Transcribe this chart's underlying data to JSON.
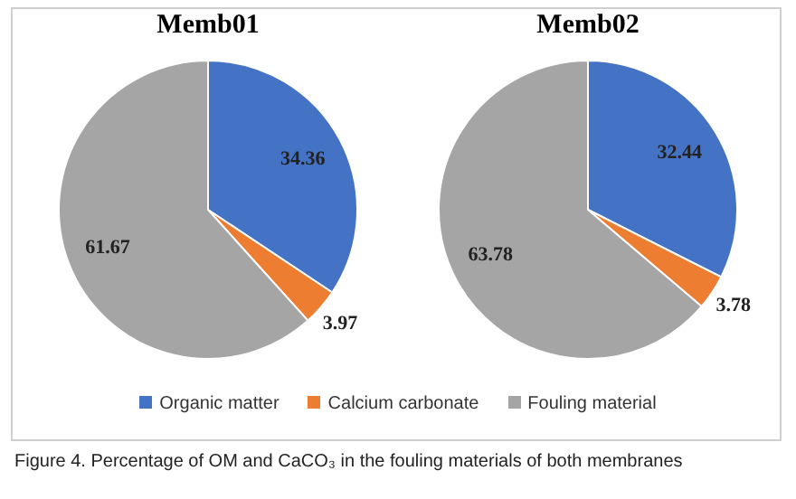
{
  "chart_data": [
    {
      "type": "pie",
      "title": "Memb01",
      "categories": [
        "Organic matter",
        "Calcium carbonate",
        "Fouling material"
      ],
      "values": [
        34.36,
        3.97,
        61.67
      ],
      "colors": [
        "#4472c4",
        "#ed7d31",
        "#a5a5a5"
      ],
      "data_labels": true,
      "legend": "bottom",
      "annotations": [
        "Figure 4. Percentage of OM and CaCO₃ in the fouling materials of both membranes"
      ]
    },
    {
      "type": "pie",
      "title": "Memb02",
      "categories": [
        null,
        null,
        null
      ],
      "values": [
        32.44,
        3.78,
        63.78
      ],
      "colors": [
        "#4472c4",
        "#ed7d31",
        "#a5a5a5"
      ],
      "data_labels": true
    }
  ]
}
